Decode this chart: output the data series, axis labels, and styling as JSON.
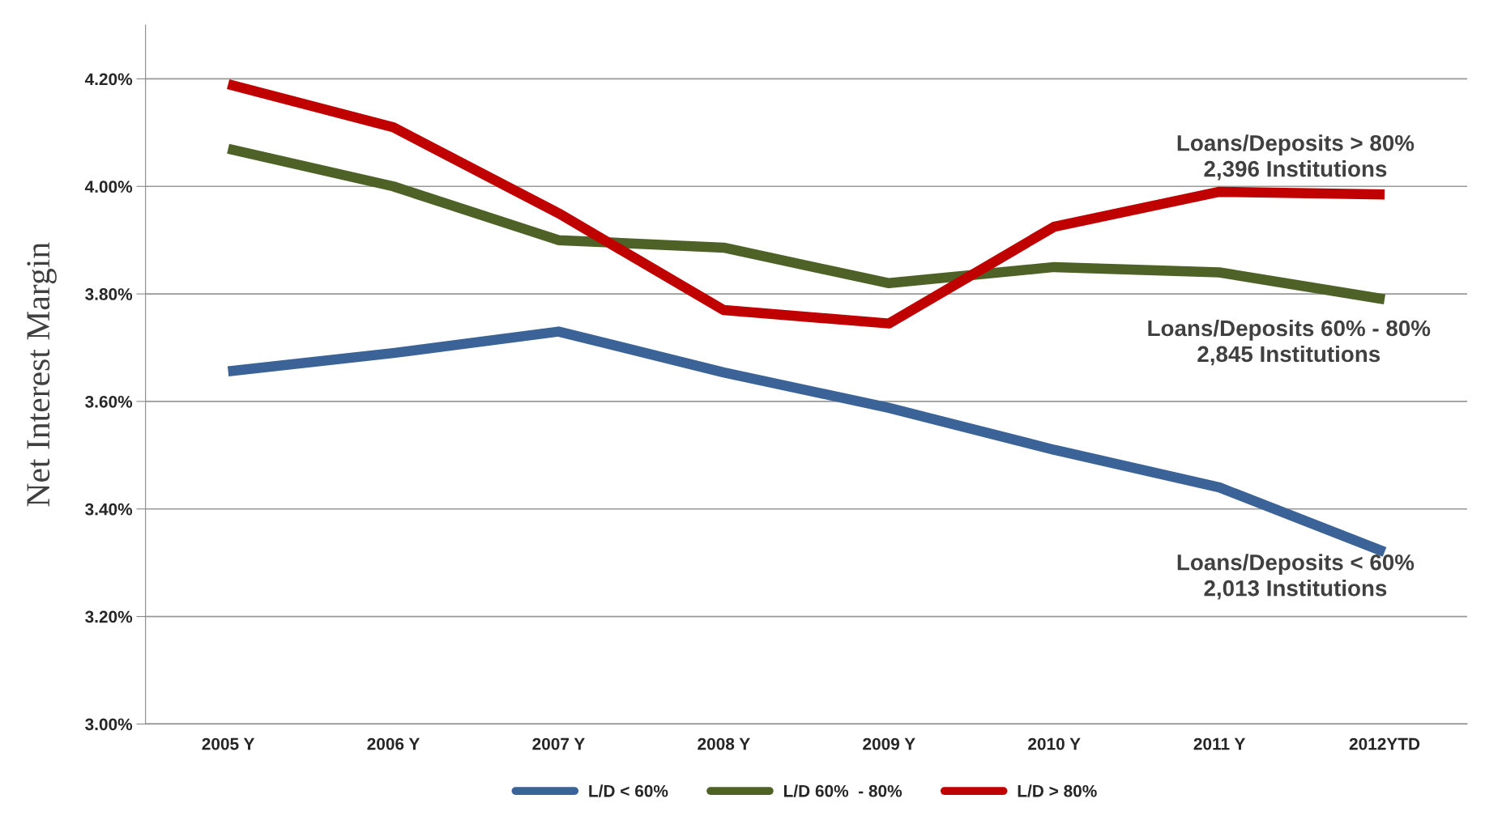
{
  "chart_data": {
    "type": "line",
    "ylabel": "Net Interest Margin",
    "categories": [
      "2005 Y",
      "2006 Y",
      "2007 Y",
      "2008 Y",
      "2009 Y",
      "2010 Y",
      "2011 Y",
      "2012YTD"
    ],
    "series": [
      {
        "name": "L/D < 60%",
        "color": "#3b6397",
        "values": [
          3.656,
          3.69,
          3.73,
          3.654,
          3.588,
          3.51,
          3.44,
          3.32
        ]
      },
      {
        "name": "L/D 60%  - 80%",
        "color": "#4e6228",
        "values": [
          4.07,
          4.0,
          3.9,
          3.886,
          3.82,
          3.85,
          3.84,
          3.79
        ]
      },
      {
        "name": "L/D > 80%",
        "color": "#c00000",
        "values": [
          4.19,
          4.11,
          3.95,
          3.77,
          3.745,
          3.925,
          3.99,
          3.985
        ]
      }
    ],
    "ylim": [
      3.0,
      4.3
    ],
    "yticks": [
      {
        "value": 3.0,
        "label": "3.00%"
      },
      {
        "value": 3.2,
        "label": "3.20%"
      },
      {
        "value": 3.4,
        "label": "3.40%"
      },
      {
        "value": 3.6,
        "label": "3.60%"
      },
      {
        "value": 3.8,
        "label": "3.80%"
      },
      {
        "value": 4.0,
        "label": "4.00%"
      },
      {
        "value": 4.2,
        "label": "4.20%"
      }
    ],
    "grid": "y",
    "legend": "bottom",
    "marker": "none",
    "line_style": "solid",
    "annotations": [
      "Loans/Deposits > 80%\n2,396 Institutions",
      "Loans/Deposits 60% - 80%\n2,845 Institutions",
      "Loans/Deposits < 60%\n2,013 Institutions"
    ]
  }
}
